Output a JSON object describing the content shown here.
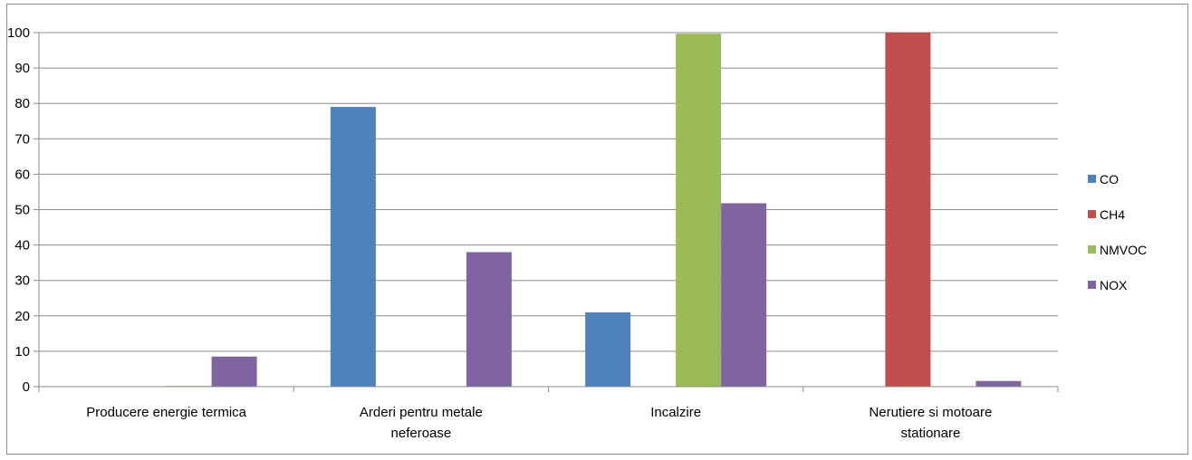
{
  "chart_data": {
    "type": "bar",
    "categories": [
      [
        "Producere energie termica"
      ],
      [
        "Arderi pentru metale",
        "neferoase"
      ],
      [
        "Incalzire"
      ],
      [
        "Nerutiere si motoare",
        "stationare"
      ]
    ],
    "series": [
      {
        "name": "CO",
        "color": "#4f81bd",
        "values": [
          0,
          79,
          21,
          0
        ]
      },
      {
        "name": "CH4",
        "color": "#c0504d",
        "values": [
          0,
          0,
          0,
          100
        ]
      },
      {
        "name": "NMVOC",
        "color": "#9bbb59",
        "values": [
          0.2,
          0,
          99.7,
          0
        ]
      },
      {
        "name": "NOX",
        "color": "#8064a2",
        "values": [
          8.5,
          38,
          51.8,
          1.6
        ]
      }
    ],
    "ylim": [
      0,
      100
    ],
    "yticks": [
      0,
      10,
      20,
      30,
      40,
      50,
      60,
      70,
      80,
      90,
      100
    ],
    "grid": true,
    "legend": "right",
    "title": "",
    "xlabel": "",
    "ylabel": ""
  }
}
